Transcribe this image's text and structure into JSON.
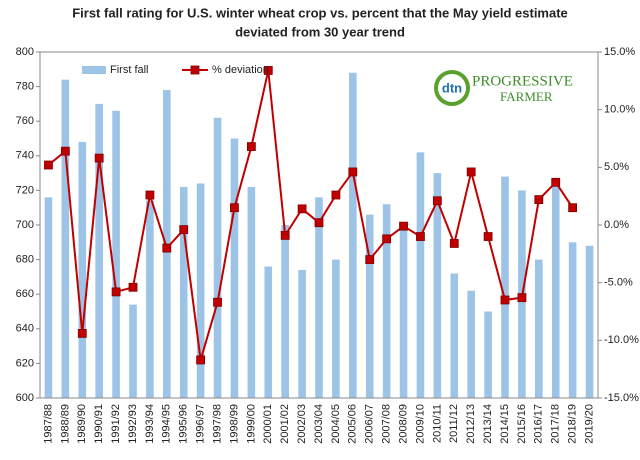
{
  "chart_data": {
    "type": "bar_line",
    "title": [
      "First fall rating for U.S. winter wheat crop vs. percent that the May yield estimate",
      "deviated from 30 year trend"
    ],
    "logo": {
      "mark": "dtn",
      "name": [
        "PROGRESSIVE",
        "FARMER"
      ]
    },
    "categories": [
      "1987/88",
      "1988/89",
      "1989/90",
      "1990/91",
      "1991/92",
      "1992/93",
      "1993/94",
      "1994/95",
      "1995/96",
      "1996/97",
      "1997/98",
      "1998/99",
      "1999/00",
      "2000/01",
      "2001/02",
      "2002/03",
      "2003/04",
      "2004/05",
      "2005/06",
      "2006/07",
      "2007/08",
      "2008/09",
      "2009/10",
      "2010/11",
      "2011/12",
      "2012/13",
      "2013/14",
      "2014/15",
      "2015/16",
      "2016/17",
      "2017/18",
      "2018/19",
      "2019/20"
    ],
    "series": [
      {
        "name": "First fall",
        "type": "bar",
        "color": "#9dc3e6",
        "values": [
          716,
          784,
          748,
          770,
          766,
          654,
          714,
          778,
          722,
          724,
          762,
          750,
          722,
          676,
          700,
          674,
          716,
          680,
          788,
          706,
          712,
          698,
          742,
          730,
          672,
          662,
          650,
          728,
          720,
          680,
          722,
          690,
          688
        ]
      },
      {
        "name": "% deviation",
        "type": "line",
        "axis": "y2",
        "color": "#c00000",
        "values": [
          5.2,
          6.4,
          -9.4,
          5.8,
          -5.8,
          -5.4,
          2.6,
          -2.0,
          -0.4,
          -11.7,
          -6.7,
          1.5,
          6.8,
          13.4,
          -0.9,
          1.4,
          0.2,
          2.6,
          4.6,
          -3.0,
          -1.2,
          -0.1,
          -1.0,
          2.1,
          -1.6,
          4.6,
          -1.0,
          -6.5,
          -6.3,
          2.2,
          3.7,
          1.5,
          null
        ]
      }
    ],
    "ylim": [
      600,
      800
    ],
    "yticks": [
      600,
      620,
      640,
      660,
      680,
      700,
      720,
      740,
      760,
      780,
      800
    ],
    "y2lim": [
      -15,
      15
    ],
    "y2ticks": [
      {
        "value": -15,
        "label": "-15.0%"
      },
      {
        "value": -10,
        "label": "-10.0%"
      },
      {
        "value": -5,
        "label": "-5.0%"
      },
      {
        "value": 0,
        "label": "0.0%"
      },
      {
        "value": 5,
        "label": "5.0%"
      },
      {
        "value": 10,
        "label": "10.0%"
      },
      {
        "value": 15,
        "label": "15.0%"
      }
    ],
    "legend": "top-left",
    "grid": false
  }
}
